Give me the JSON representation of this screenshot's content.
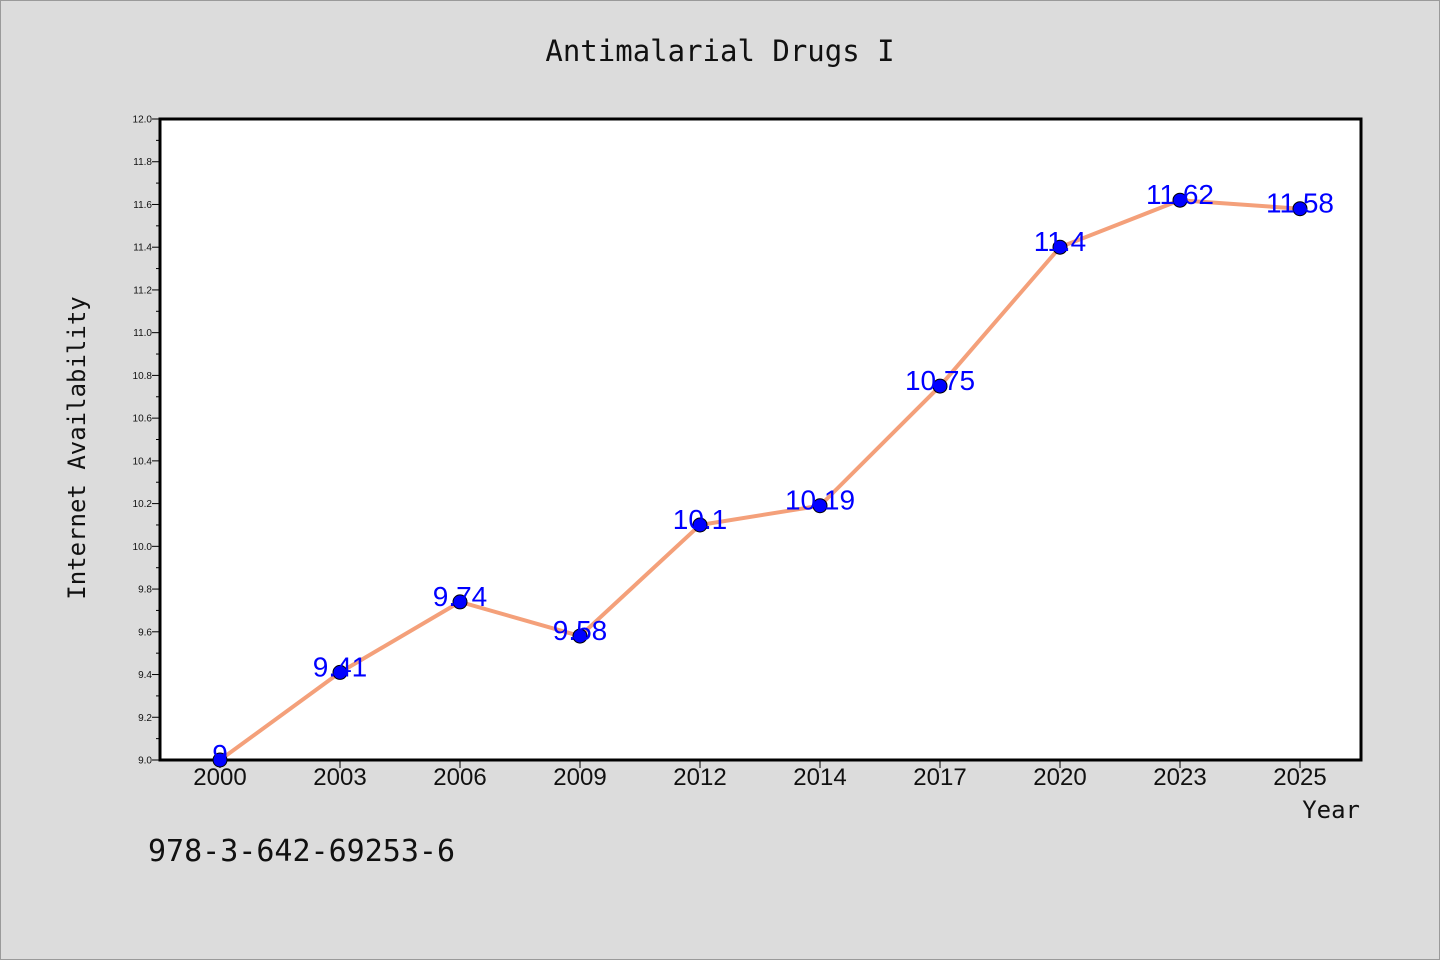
{
  "chart_data": {
    "type": "line",
    "title": "Antimalarial Drugs I",
    "xlabel": "Year",
    "ylabel": "Internet Availability",
    "categories": [
      "2000",
      "2003",
      "2006",
      "2009",
      "2012",
      "2014",
      "2017",
      "2020",
      "2023",
      "2025"
    ],
    "values": [
      9.0,
      9.41,
      9.74,
      9.58,
      10.1,
      10.19,
      10.75,
      11.4,
      11.62,
      11.58
    ],
    "data_labels": [
      "9",
      "9.41",
      "9.74",
      "9.58",
      "10.1",
      "10.19",
      "10.75",
      "11.4",
      "11.62",
      "11.58"
    ],
    "ylim": [
      9.0,
      12.0
    ],
    "yticks": [
      "9.0",
      "9.2",
      "9.4",
      "9.6",
      "9.8",
      "10.0",
      "10.2",
      "10.4",
      "10.6",
      "10.8",
      "11.0",
      "11.2",
      "11.4",
      "11.6",
      "11.8",
      "12.0"
    ],
    "grid": false,
    "colors": {
      "line": "#f4a07a",
      "marker": "#0000ff",
      "label": "#0000ff",
      "background": "#dcdcdc",
      "plot_area": "#ffffff"
    }
  },
  "annotation": {
    "isbn": "978-3-642-69253-6"
  }
}
